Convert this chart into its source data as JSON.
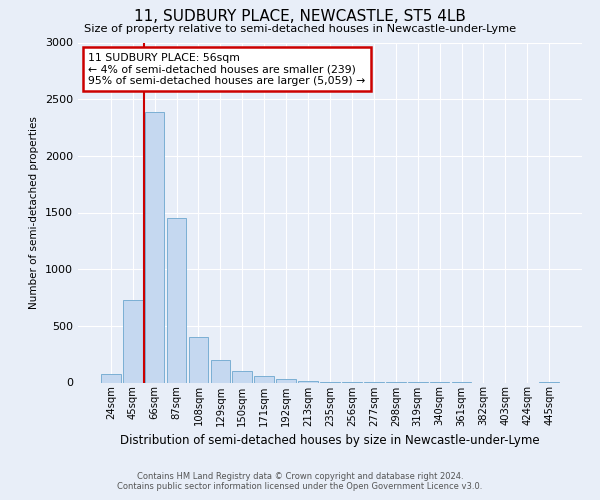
{
  "title": "11, SUDBURY PLACE, NEWCASTLE, ST5 4LB",
  "subtitle": "Size of property relative to semi-detached houses in Newcastle-under-Lyme",
  "xlabel": "Distribution of semi-detached houses by size in Newcastle-under-Lyme",
  "ylabel": "Number of semi-detached properties",
  "footer_line1": "Contains HM Land Registry data © Crown copyright and database right 2024.",
  "footer_line2": "Contains public sector information licensed under the Open Government Licence v3.0.",
  "bin_labels": [
    "24sqm",
    "45sqm",
    "66sqm",
    "87sqm",
    "108sqm",
    "129sqm",
    "150sqm",
    "171sqm",
    "192sqm",
    "213sqm",
    "235sqm",
    "256sqm",
    "277sqm",
    "298sqm",
    "319sqm",
    "340sqm",
    "361sqm",
    "382sqm",
    "403sqm",
    "424sqm",
    "445sqm"
  ],
  "bar_values": [
    75,
    730,
    2390,
    1450,
    400,
    200,
    100,
    60,
    30,
    15,
    8,
    5,
    3,
    2,
    1,
    1,
    1,
    0,
    0,
    0,
    5
  ],
  "bar_color": "#c5d8f0",
  "bar_edge_color": "#7bafd4",
  "vline_color": "#cc0000",
  "vline_x_index": 1.5,
  "annotation_title": "11 SUDBURY PLACE: 56sqm",
  "annotation_line1": "← 4% of semi-detached houses are smaller (239)",
  "annotation_line2": "95% of semi-detached houses are larger (5,059) →",
  "annotation_box_color": "#cc0000",
  "ylim": [
    0,
    3000
  ],
  "yticks": [
    0,
    500,
    1000,
    1500,
    2000,
    2500,
    3000
  ],
  "background_color": "#e8eef8",
  "grid_color": "#ffffff"
}
